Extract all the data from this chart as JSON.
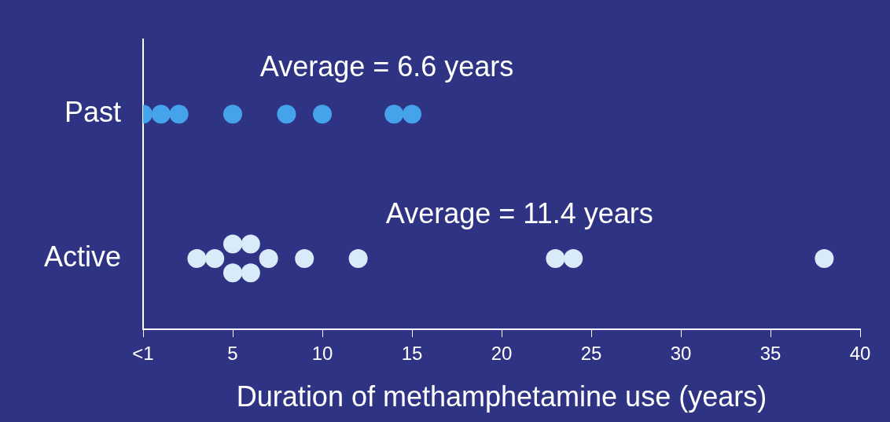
{
  "chart_data": {
    "type": "scatter",
    "orientation": "horizontal",
    "xlabel": "Duration of methamphetamine use (years)",
    "categories": [
      "Past",
      "Active"
    ],
    "xlim": [
      0,
      40
    ],
    "xticks": [
      {
        "value": 0,
        "label": "<1"
      },
      5,
      10,
      15,
      20,
      25,
      30,
      35,
      40
    ],
    "grid": false,
    "legend": false,
    "marker": "circle",
    "series": [
      {
        "color": "#44a3ea",
        "x": [
          "Past",
          "Past",
          "Past",
          "Past",
          "Past",
          "Past",
          "Past",
          "Past"
        ],
        "values": [
          0,
          1,
          2,
          5,
          8,
          10,
          14,
          15
        ]
      },
      {
        "color": "#d9eaf8",
        "x": [
          "Active",
          "Active",
          "Active",
          "Active",
          "Active",
          "Active",
          "Active",
          "Active",
          "Active",
          "Active",
          "Active",
          "Active"
        ],
        "values": [
          3,
          4,
          5,
          5,
          6,
          6,
          7,
          9,
          12,
          23,
          24,
          38
        ]
      }
    ],
    "annotations": [
      "Average = 6.6 years",
      "Average = 11.4 years"
    ]
  }
}
